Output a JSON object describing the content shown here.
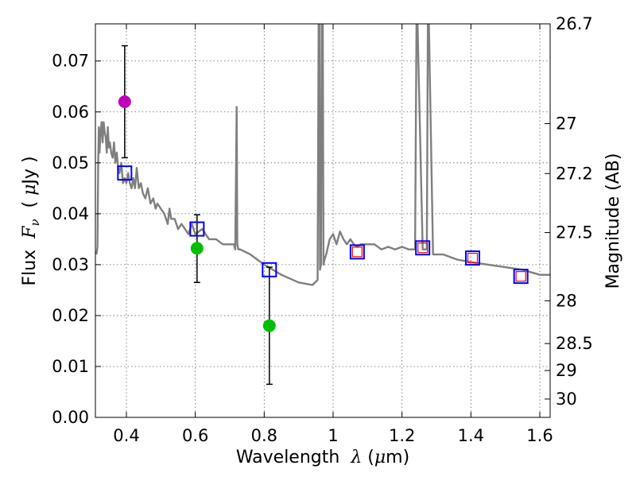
{
  "chart_data": {
    "type": "scatter",
    "xlabel_prefix": "Wavelength  ",
    "xlabel_symbol": "λ",
    "xlabel_unit_open": " (",
    "xlabel_unit_mu": "μ",
    "xlabel_unit_close": "m)",
    "ylabel_prefix": "Flux  ",
    "ylabel_symbol": "F",
    "ylabel_sub": "ν",
    "ylabel_unit_open": "  ( ",
    "ylabel_unit_mu": "μ",
    "ylabel_unit_close": "Jy )",
    "y2label": "Magnitude (AB)",
    "xlim": [
      0.31,
      1.63
    ],
    "ylim": [
      0.0,
      0.0773
    ],
    "xticks": [
      "0.4",
      "0.6",
      "0.8",
      "1",
      "1.2",
      "1.4",
      "1.6"
    ],
    "xtick_values": [
      0.4,
      0.6,
      0.8,
      1.0,
      1.2,
      1.4,
      1.6
    ],
    "yticks": [
      "0.00",
      "0.01",
      "0.02",
      "0.03",
      "0.04",
      "0.05",
      "0.06",
      "0.07"
    ],
    "ytick_values": [
      0.0,
      0.01,
      0.02,
      0.03,
      0.04,
      0.05,
      0.06,
      0.07
    ],
    "y2ticks": [
      {
        "label": "26.7",
        "flux": 0.0773
      },
      {
        "label": "27",
        "flux": 0.0577
      },
      {
        "label": "27.2",
        "flux": 0.0479
      },
      {
        "label": "27.5",
        "flux": 0.0363
      },
      {
        "label": "28",
        "flux": 0.0229
      },
      {
        "label": "28.5",
        "flux": 0.0145
      },
      {
        "label": "29",
        "flux": 0.0092
      },
      {
        "label": "30",
        "flux": 0.0036
      }
    ],
    "grid": true,
    "series": [
      {
        "name": "model spectrum",
        "kind": "line",
        "color": "#7f7f7f",
        "x": [
          0.313,
          0.316,
          0.318,
          0.32,
          0.322,
          0.325,
          0.328,
          0.331,
          0.334,
          0.337,
          0.34,
          0.343,
          0.346,
          0.349,
          0.352,
          0.356,
          0.36,
          0.364,
          0.368,
          0.372,
          0.376,
          0.38,
          0.385,
          0.39,
          0.395,
          0.4,
          0.405,
          0.41,
          0.415,
          0.42,
          0.425,
          0.43,
          0.436,
          0.442,
          0.448,
          0.455,
          0.462,
          0.47,
          0.478,
          0.485,
          0.49,
          0.5,
          0.51,
          0.52,
          0.525,
          0.53,
          0.54,
          0.55,
          0.56,
          0.57,
          0.58,
          0.59,
          0.6,
          0.62,
          0.64,
          0.66,
          0.68,
          0.7,
          0.712,
          0.716,
          0.72,
          0.722,
          0.725,
          0.73,
          0.76,
          0.8,
          0.85,
          0.9,
          0.94,
          0.955,
          0.958,
          0.96,
          0.962,
          0.965,
          0.967,
          0.97,
          0.972,
          0.975,
          0.98,
          0.99,
          1.0,
          1.01,
          1.02,
          1.03,
          1.04,
          1.05,
          1.06,
          1.07,
          1.08,
          1.1,
          1.12,
          1.14,
          1.16,
          1.18,
          1.2,
          1.22,
          1.238,
          1.242,
          1.245,
          1.26,
          1.272,
          1.275,
          1.278,
          1.29,
          1.32,
          1.36,
          1.4,
          1.45,
          1.5,
          1.55,
          1.6,
          1.63
        ],
        "y": [
          0.032,
          0.0335,
          0.05,
          0.057,
          0.052,
          0.056,
          0.058,
          0.054,
          0.058,
          0.056,
          0.055,
          0.052,
          0.057,
          0.053,
          0.054,
          0.052,
          0.051,
          0.054,
          0.05,
          0.052,
          0.049,
          0.048,
          0.05,
          0.046,
          0.047,
          0.046,
          0.048,
          0.046,
          0.045,
          0.047,
          0.045,
          0.049,
          0.045,
          0.046,
          0.044,
          0.043,
          0.045,
          0.042,
          0.043,
          0.041,
          0.042,
          0.041,
          0.04,
          0.038,
          0.041,
          0.039,
          0.039,
          0.037,
          0.038,
          0.037,
          0.036,
          0.038,
          0.036,
          0.037,
          0.035,
          0.035,
          0.034,
          0.034,
          0.034,
          0.033,
          0.061,
          0.034,
          0.033,
          0.033,
          0.032,
          0.03,
          0.028,
          0.0265,
          0.026,
          0.027,
          0.08,
          0.08,
          0.029,
          0.03,
          0.08,
          0.08,
          0.03,
          0.031,
          0.032,
          0.035,
          0.036,
          0.034,
          0.0365,
          0.035,
          0.034,
          0.035,
          0.034,
          0.0335,
          0.034,
          0.034,
          0.034,
          0.033,
          0.0335,
          0.033,
          0.0335,
          0.033,
          0.033,
          0.08,
          0.08,
          0.033,
          0.033,
          0.08,
          0.08,
          0.032,
          0.032,
          0.031,
          0.0305,
          0.03,
          0.0295,
          0.029,
          0.028,
          0.028
        ]
      },
      {
        "name": "observed (magenta)",
        "kind": "points",
        "color": "#bf00bf",
        "x": [
          0.395
        ],
        "y": [
          0.062
        ],
        "yerr_low": [
          0.051
        ],
        "yerr_high": [
          0.073
        ]
      },
      {
        "name": "observed (green)",
        "kind": "points",
        "color": "#00bf00",
        "x": [
          0.605,
          0.815
        ],
        "y": [
          0.0332,
          0.018
        ],
        "yerr_low": [
          0.0265,
          0.0065
        ],
        "yerr_high": [
          0.0398,
          0.0295
        ]
      },
      {
        "name": "model photometry (blue squares)",
        "kind": "squares",
        "color": "#0000ff",
        "x": [
          0.395,
          0.605,
          0.815,
          1.07,
          1.26,
          1.405,
          1.545
        ],
        "y": [
          0.048,
          0.037,
          0.029,
          0.0325,
          0.0333,
          0.0313,
          0.0277
        ]
      },
      {
        "name": "model photometry (red squares)",
        "kind": "small-squares",
        "color": "#ff0000",
        "x": [
          1.07,
          1.26,
          1.405,
          1.545
        ],
        "y": [
          0.0325,
          0.0333,
          0.0313,
          0.0277
        ]
      }
    ]
  }
}
